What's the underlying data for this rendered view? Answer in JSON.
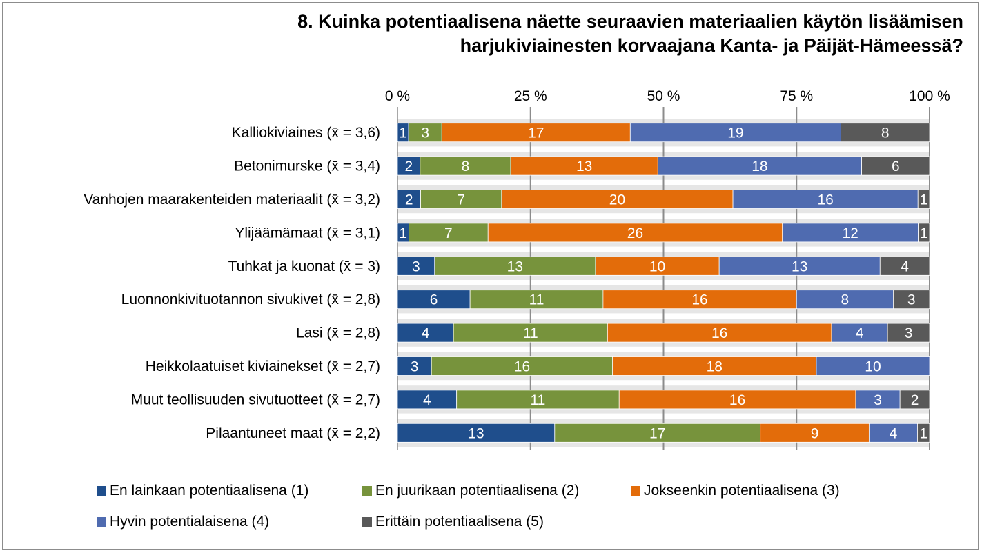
{
  "chart_data": {
    "type": "bar",
    "stacked": "percent",
    "orientation": "horizontal",
    "title_lines": [
      "8. Kuinka potentiaalisena näette seuraavien materiaalien käytön lisäämisen",
      "harjukiviainesten korvaajana Kanta- ja Päijät-Hämeessä?"
    ],
    "x_ticks": [
      "0 %",
      "25 %",
      "50 %",
      "75 %",
      "100 %"
    ],
    "xlim": [
      0,
      100
    ],
    "grid": true,
    "legend_position": "bottom",
    "categories": [
      "Kalliokiviaines (x̄ = 3,6)",
      "Betonimurske (x̄ = 3,4)",
      "Vanhojen maarakenteiden materiaalit (x̄ = 3,2)",
      "Ylijäämämaat (x̄ = 3,1)",
      "Tuhkat ja kuonat (x̄ = 3)",
      "Luonnonkivituotannon sivukivet (x̄ = 2,8)",
      "Lasi (x̄ = 2,8)",
      "Heikkolaatuiset kiviainekset (x̄ = 2,7)",
      "Muut teollisuuden sivutuotteet (x̄ = 2,7)",
      "Pilaantuneet maat (x̄ = 2,2)"
    ],
    "series": [
      {
        "name": "En lainkaan potentiaalisena (1)",
        "color": "#1f4e8c",
        "values": [
          1,
          2,
          2,
          1,
          3,
          6,
          4,
          3,
          4,
          13
        ]
      },
      {
        "name": "En juurikaan potentiaalisena (2)",
        "color": "#77933c",
        "values": [
          3,
          8,
          7,
          7,
          13,
          11,
          11,
          16,
          11,
          17
        ]
      },
      {
        "name": "Jokseenkin potentiaalisena (3)",
        "color": "#e36c0a",
        "values": [
          17,
          13,
          20,
          26,
          10,
          16,
          16,
          18,
          16,
          9
        ]
      },
      {
        "name": "Hyvin potentialaisena (4)",
        "color": "#4f6bb0",
        "values": [
          19,
          18,
          16,
          12,
          13,
          8,
          4,
          10,
          3,
          4
        ]
      },
      {
        "name": "Erittäin potentiaalisena (5)",
        "color": "#595959",
        "values": [
          8,
          6,
          1,
          1,
          4,
          3,
          3,
          0,
          2,
          1
        ]
      }
    ]
  }
}
